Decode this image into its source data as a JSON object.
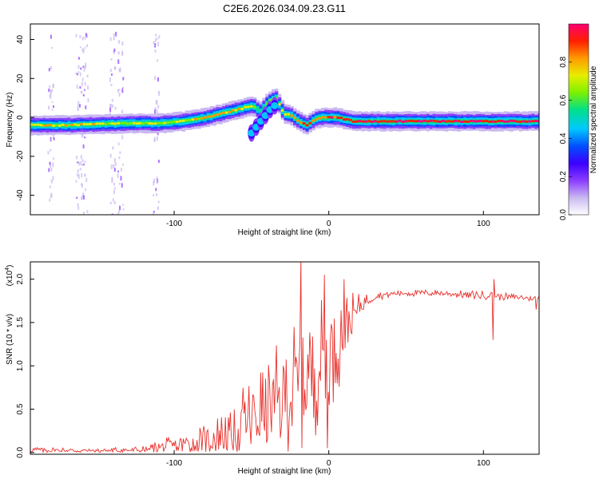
{
  "figure_title": "C2E6.2026.034.09.23.G11",
  "colors": {
    "snr_line": "#e8312c",
    "axis": "#000000",
    "colormap": [
      "#ffffff",
      "#c9b8f0",
      "#8a3cff",
      "#3b00ff",
      "#0050ff",
      "#00c8ff",
      "#00e08a",
      "#7cf000",
      "#e8ee00",
      "#ff9a00",
      "#ff2000",
      "#ff0070"
    ]
  },
  "chart_data": [
    {
      "type": "heatmap",
      "title": "",
      "xlabel": "Height of straight line (km)",
      "ylabel": "Frequency (Hz)",
      "xlim": [
        -193,
        136
      ],
      "ylim": [
        -50,
        48
      ],
      "xticks": [
        -100,
        0,
        100
      ],
      "xtick_labels": [
        "-100",
        "0",
        "100"
      ],
      "yticks": [
        40,
        20,
        0,
        -20,
        -40
      ],
      "ytick_labels": [
        "40",
        "20",
        "0",
        "-20",
        "-40"
      ],
      "colorbar": {
        "label": "Normalized spectral amplitude",
        "range": [
          0,
          1
        ],
        "ticks": [
          0.0,
          0.2,
          0.4,
          0.6,
          0.8
        ],
        "tick_labels": [
          "0.0",
          "0.2",
          "0.4",
          "0.6",
          "0.8"
        ]
      },
      "ridge": {
        "description": "dominant spectral ridge frequency (Hz) vs height (km)",
        "x": [
          -193,
          -170,
          -150,
          -130,
          -110,
          -95,
          -80,
          -70,
          -60,
          -50,
          -45,
          -40,
          -35,
          -30,
          -25,
          -20,
          -15,
          -10,
          -5,
          0,
          5,
          10,
          15,
          30,
          60,
          100,
          136
        ],
        "freq": [
          -4,
          -4,
          -3.5,
          -3,
          -3,
          -2,
          0,
          2,
          4,
          6,
          3,
          8,
          10,
          2,
          1,
          -2,
          -4,
          -1,
          0,
          0,
          0,
          -1,
          -2,
          -2,
          -2,
          -2,
          -2
        ],
        "amplitude": [
          0.75,
          0.75,
          0.7,
          0.65,
          0.7,
          0.7,
          0.75,
          0.8,
          0.75,
          0.7,
          0.6,
          0.65,
          0.6,
          0.75,
          0.8,
          0.85,
          0.9,
          0.85,
          0.85,
          0.9,
          0.9,
          0.9,
          0.95,
          0.95,
          0.95,
          0.95,
          0.95
        ]
      },
      "branch": {
        "description": "secondary descending branch (Hz)",
        "x": [
          -50,
          -47,
          -44,
          -41,
          -38,
          -35
        ],
        "freq": [
          -8,
          -5,
          -2,
          1,
          4,
          6
        ]
      },
      "noise_columns_x": [
        -180,
        -162,
        -158,
        -140,
        -135,
        -112
      ],
      "noise_extent_freq": [
        -50,
        45
      ]
    },
    {
      "type": "line",
      "title": "",
      "xlabel": "Height of straight line (km)",
      "ylabel": "SNR (10 * v/v)",
      "y_multiplier": "(x10^4)",
      "y_multiplier_base": "(x10",
      "y_multiplier_exp": "4",
      "y_multiplier_close": ")",
      "xlim": [
        -193,
        136
      ],
      "ylim": [
        -0.02,
        2.2
      ],
      "xticks": [
        -100,
        0,
        100
      ],
      "xtick_labels": [
        "-100",
        "0",
        "100"
      ],
      "yticks": [
        0.0,
        0.5,
        1.0,
        1.5,
        2.0
      ],
      "ytick_labels": [
        "0.0",
        "0.5",
        "1.0",
        "1.5",
        "2.0"
      ],
      "series": [
        {
          "name": "SNR",
          "x_start": -193,
          "x_end": 136,
          "points": 520,
          "envelope_x": [
            -193,
            -150,
            -120,
            -100,
            -85,
            -70,
            -60,
            -50,
            -40,
            -30,
            -25,
            -20,
            -15,
            -10,
            -5,
            0,
            5,
            10,
            15,
            20,
            25,
            30,
            40,
            50,
            60,
            70,
            80,
            90,
            95,
            100,
            105,
            110,
            115,
            120,
            125,
            130,
            136
          ],
          "envelope_mean": [
            0.03,
            0.02,
            0.03,
            0.08,
            0.12,
            0.18,
            0.28,
            0.38,
            0.5,
            0.6,
            0.68,
            0.78,
            0.88,
            0.95,
            1.05,
            1.12,
            1.25,
            1.4,
            1.55,
            1.68,
            1.76,
            1.8,
            1.83,
            1.84,
            1.84,
            1.84,
            1.83,
            1.82,
            1.82,
            1.81,
            1.82,
            1.8,
            1.8,
            1.79,
            1.79,
            1.78,
            1.78
          ],
          "envelope_spread": [
            0.04,
            0.03,
            0.05,
            0.12,
            0.18,
            0.28,
            0.42,
            0.52,
            0.62,
            0.72,
            0.75,
            0.8,
            0.82,
            0.8,
            0.75,
            0.7,
            0.6,
            0.45,
            0.3,
            0.15,
            0.08,
            0.05,
            0.04,
            0.04,
            0.04,
            0.04,
            0.04,
            0.05,
            0.05,
            0.06,
            0.05,
            0.05,
            0.04,
            0.04,
            0.04,
            0.04,
            0.05
          ],
          "spikes": [
            [
              -18,
              2.25
            ],
            [
              -3,
              2.05
            ],
            [
              10,
              2.0
            ],
            [
              -1,
              0.05
            ],
            [
              -10,
              0.4
            ],
            [
              106,
              1.3
            ],
            [
              107,
              2.0
            ],
            [
              134,
              1.65
            ]
          ]
        }
      ]
    }
  ]
}
